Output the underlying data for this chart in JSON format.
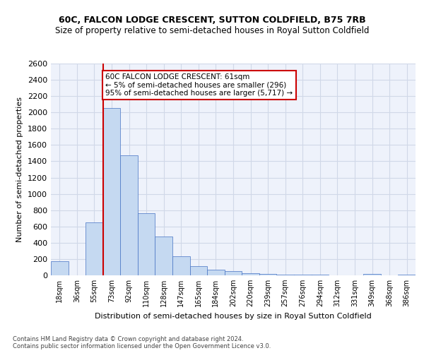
{
  "title1": "60C, FALCON LODGE CRESCENT, SUTTON COLDFIELD, B75 7RB",
  "title2": "Size of property relative to semi-detached houses in Royal Sutton Coldfield",
  "xlabel": "Distribution of semi-detached houses by size in Royal Sutton Coldfield",
  "ylabel": "Number of semi-detached properties",
  "footer1": "Contains HM Land Registry data © Crown copyright and database right 2024.",
  "footer2": "Contains public sector information licensed under the Open Government Licence v3.0.",
  "categories": [
    "18sqm",
    "36sqm",
    "55sqm",
    "73sqm",
    "92sqm",
    "110sqm",
    "128sqm",
    "147sqm",
    "165sqm",
    "184sqm",
    "202sqm",
    "220sqm",
    "239sqm",
    "257sqm",
    "276sqm",
    "294sqm",
    "312sqm",
    "331sqm",
    "349sqm",
    "368sqm",
    "386sqm"
  ],
  "values": [
    175,
    0,
    650,
    2050,
    1475,
    760,
    480,
    235,
    115,
    70,
    55,
    30,
    18,
    5,
    5,
    5,
    0,
    0,
    20,
    0,
    5
  ],
  "bar_color": "#c5d9f1",
  "bar_edge_color": "#4472c4",
  "grid_color": "#d0d8e8",
  "background_color": "#eef2fb",
  "property_label": "60C FALCON LODGE CRESCENT: 61sqm",
  "smaller_pct": "5% of semi-detached houses are smaller (296)",
  "larger_pct": "95% of semi-detached houses are larger (5,717)",
  "vline_x_index": 2.5,
  "annotation_box_color": "#ffffff",
  "annotation_box_edge": "#cc0000",
  "vline_color": "#cc0000",
  "ylim": [
    0,
    2600
  ],
  "yticks": [
    0,
    200,
    400,
    600,
    800,
    1000,
    1200,
    1400,
    1600,
    1800,
    2000,
    2200,
    2400,
    2600
  ]
}
